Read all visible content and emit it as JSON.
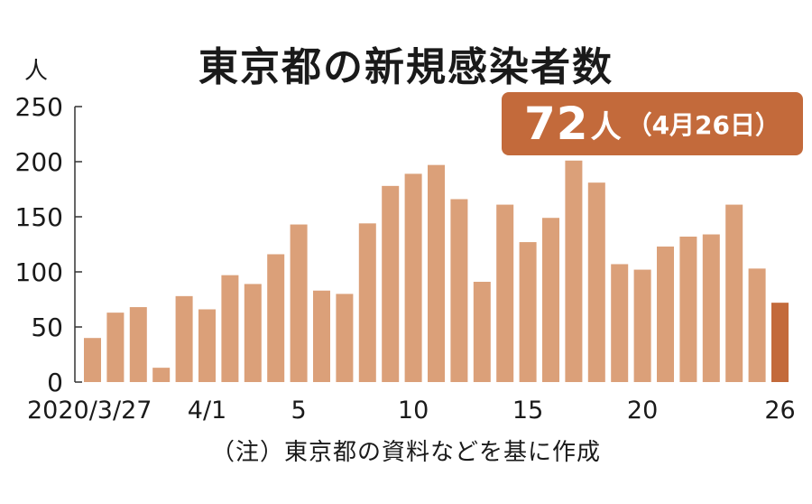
{
  "title": "東京都の新規感染者数",
  "unit": "人",
  "callout": {
    "value": "72",
    "unit": "人",
    "date": "（4月26日）"
  },
  "note": "（注）東京都の資料などを基に作成",
  "colors": {
    "bar": "#dba079",
    "highlight_bar": "#c36a3b",
    "callout_bg": "#c36a3b",
    "axis": "#333333"
  },
  "chart_data": {
    "type": "bar",
    "title": "東京都の新規感染者数",
    "ylabel": "人",
    "xlabel": "",
    "ylim": [
      0,
      250
    ],
    "yticks": [
      0,
      50,
      100,
      150,
      200,
      250
    ],
    "grid": false,
    "categories": [
      "3/27",
      "3/28",
      "3/29",
      "3/30",
      "3/31",
      "4/1",
      "4/2",
      "4/3",
      "4/4",
      "4/5",
      "4/6",
      "4/7",
      "4/8",
      "4/9",
      "4/10",
      "4/11",
      "4/12",
      "4/13",
      "4/14",
      "4/15",
      "4/16",
      "4/17",
      "4/18",
      "4/19",
      "4/20",
      "4/21",
      "4/22",
      "4/23",
      "4/24",
      "4/25",
      "4/26"
    ],
    "values": [
      40,
      63,
      68,
      13,
      78,
      66,
      97,
      89,
      116,
      143,
      83,
      80,
      144,
      178,
      189,
      197,
      166,
      91,
      161,
      127,
      149,
      201,
      181,
      107,
      102,
      123,
      132,
      134,
      161,
      103,
      72
    ],
    "highlight_index": 30,
    "x_tick_labels": [
      {
        "index": 0,
        "label": "2020/3/27"
      },
      {
        "index": 5,
        "label": "4/1"
      },
      {
        "index": 9,
        "label": "5"
      },
      {
        "index": 14,
        "label": "10"
      },
      {
        "index": 19,
        "label": "15"
      },
      {
        "index": 24,
        "label": "20"
      },
      {
        "index": 30,
        "label": "26"
      }
    ]
  }
}
